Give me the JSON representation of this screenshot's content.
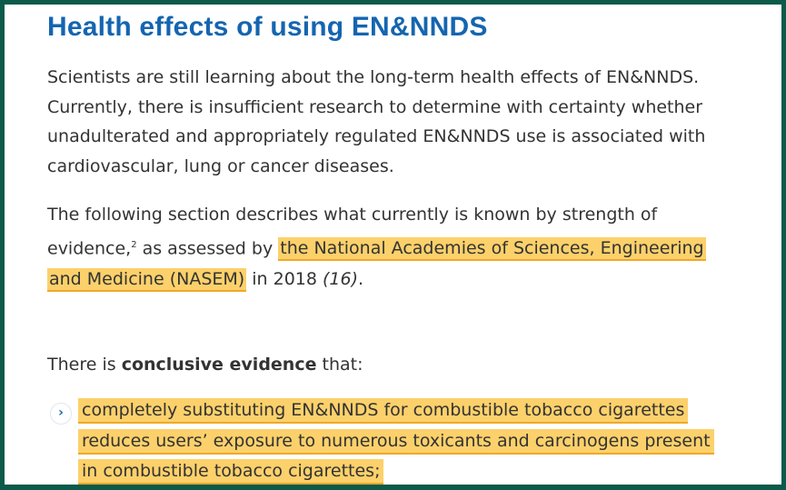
{
  "title": "Health effects of using EN&NNDS",
  "paragraph1": [
    "Scientists are still learning about the long-term health effects of EN&NNDS.",
    "Currently, there is insufficient research to determine with certainty whether",
    "unadulterated and appropriately regulated EN&NNDS use is associated with",
    "cardiovascular, lung or cancer diseases."
  ],
  "paragraph2": {
    "line1": "The following section describes what currently is known by strength of",
    "line2_pre": "evidence,",
    "footnote": "2",
    "line2_mid": " as assessed by ",
    "highlight1": "the National Academies of Sciences, Engineering",
    "highlight2": "and Medicine (NASEM)",
    "line3_post": " in 2018 ",
    "citation": "(16)",
    "end": "."
  },
  "paragraph3": {
    "pre": "There is ",
    "bold": "conclusive evidence",
    "post": " that:"
  },
  "bullet": {
    "icon": "chevron-right-icon",
    "glyph": "›",
    "lines": [
      "completely substituting EN&NNDS for combustible tobacco cigarettes",
      "reduces users’ exposure to numerous toxicants and carcinogens present",
      "in combustible tobacco cigarettes;"
    ]
  },
  "colors": {
    "border": "#0b5a4a",
    "title": "#1565b0",
    "highlight": "#fcd16b"
  }
}
